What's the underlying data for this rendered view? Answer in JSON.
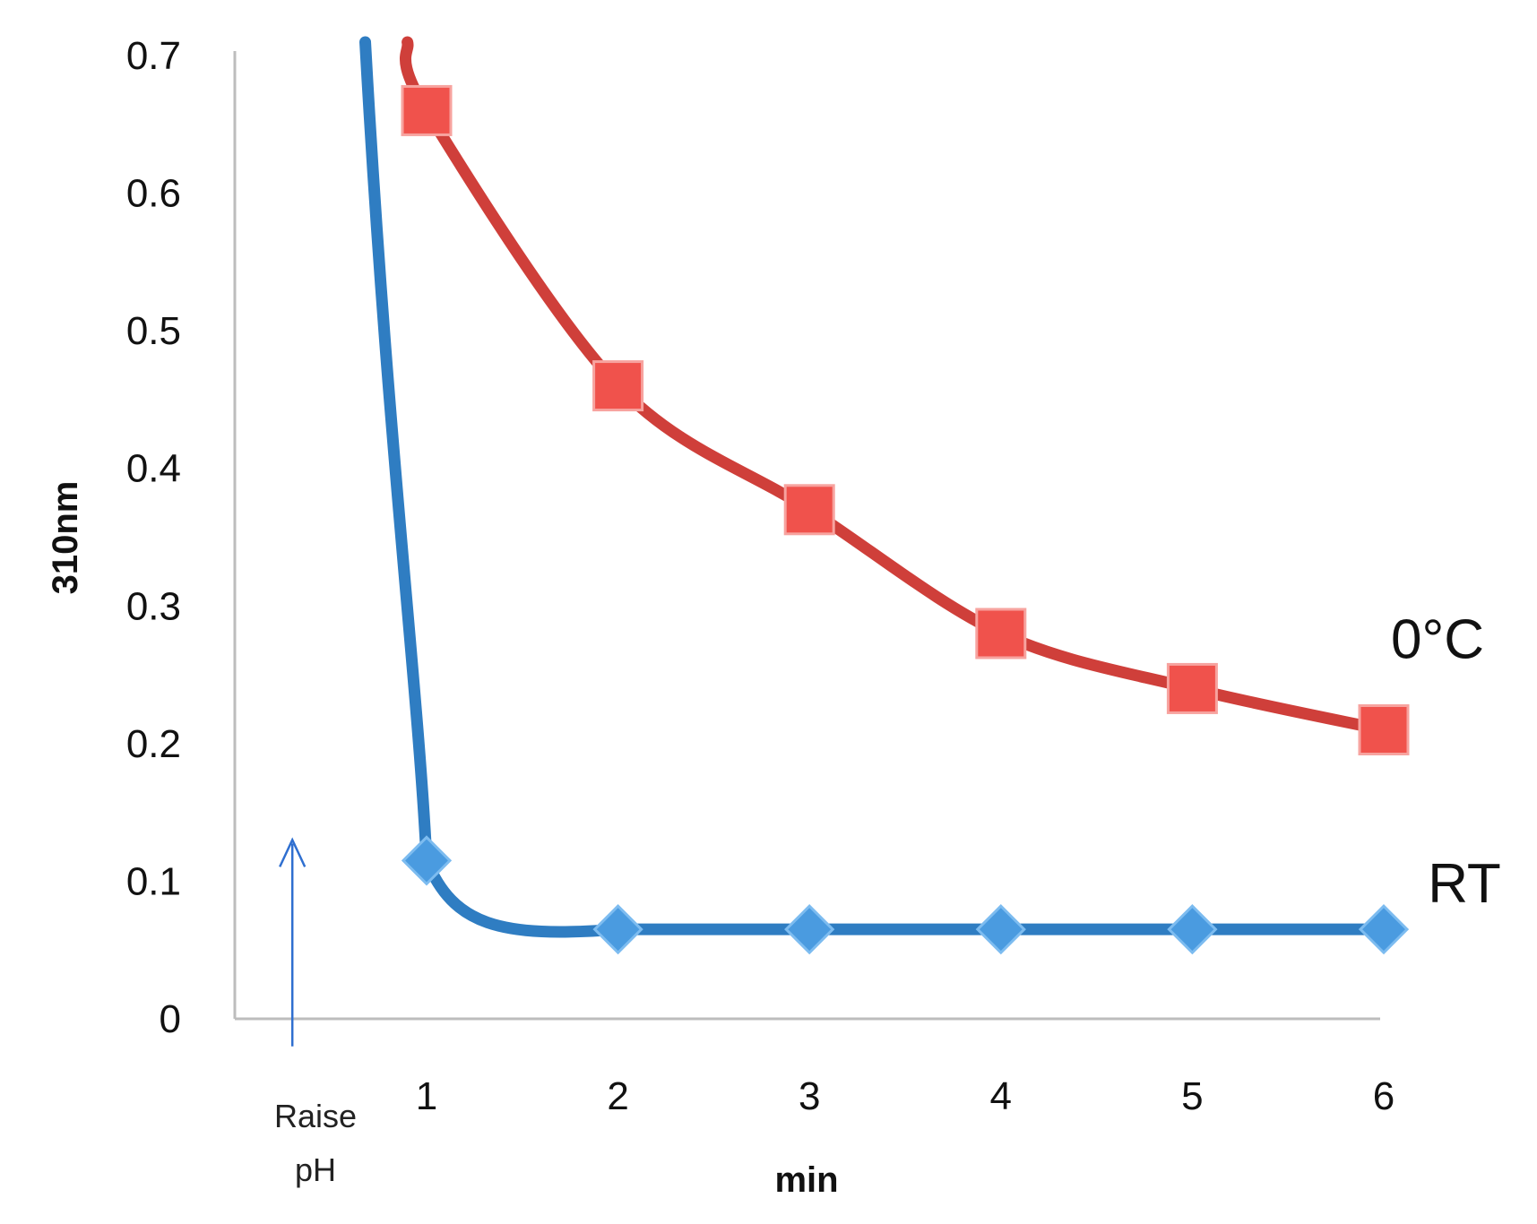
{
  "chart_data": {
    "type": "line",
    "title": "",
    "xlabel": "min",
    "ylabel": "310nm",
    "x": [
      1,
      2,
      3,
      4,
      5,
      6
    ],
    "x_tick_labels": [
      "1",
      "2",
      "3",
      "4",
      "5",
      "6"
    ],
    "xlim": [
      0,
      6
    ],
    "ylim": [
      0,
      0.7
    ],
    "y_ticks": [
      0,
      0.1,
      0.2,
      0.3,
      0.4,
      0.5,
      0.6,
      0.7
    ],
    "y_tick_labels": [
      "0",
      "0.1",
      "0.2",
      "0.3",
      "0.4",
      "0.5",
      "0.6",
      "0.7"
    ],
    "grid": false,
    "series": [
      {
        "name": "0°C",
        "color": "#cf3f3a",
        "marker": "square",
        "marker_color": "#f0524c",
        "values": [
          0.66,
          0.46,
          0.37,
          0.28,
          0.24,
          0.21
        ],
        "lead_in": {
          "x": 0.9,
          "y": 0.72
        }
      },
      {
        "name": "RT",
        "color": "#2f7dc2",
        "marker": "diamond",
        "marker_color": "#4a9be0",
        "values": [
          0.115,
          0.065,
          0.065,
          0.065,
          0.065,
          0.065
        ],
        "lead_in": {
          "x": 0.68,
          "y": 0.72
        }
      }
    ],
    "annotations": [
      {
        "text_line1": "Raise",
        "text_line2": "pH",
        "x": 0.3,
        "arrow_from_y": -0.02,
        "arrow_to_y": 0.13,
        "color": "#2f6fd0"
      }
    ]
  }
}
